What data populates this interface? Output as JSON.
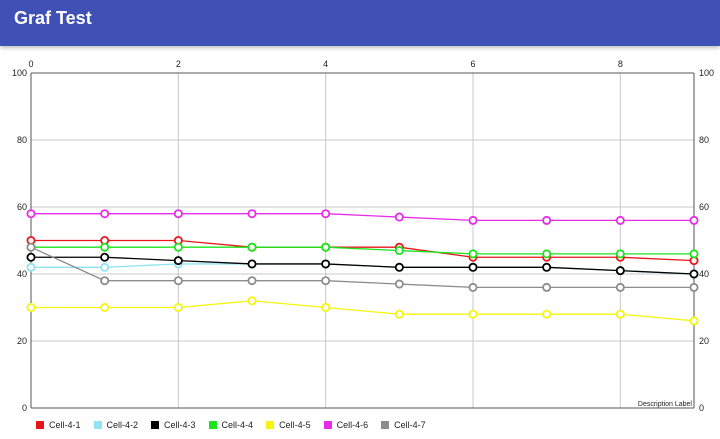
{
  "app": {
    "title": "Graf Test"
  },
  "chart_data": {
    "type": "line",
    "x": [
      0,
      1,
      2,
      3,
      4,
      5,
      6,
      7,
      8,
      9
    ],
    "xlim": [
      0,
      9
    ],
    "x_ticks": [
      0,
      2,
      4,
      6,
      8
    ],
    "ylim": [
      0,
      100
    ],
    "y_ticks": [
      0,
      20,
      40,
      60,
      80,
      100
    ],
    "grid": true,
    "description": "Description Label",
    "legend_position": "bottom-left",
    "series": [
      {
        "name": "Cell-4-1",
        "color": "#e8161b",
        "values": [
          50,
          50,
          50,
          48,
          48,
          48,
          45,
          45,
          45,
          44
        ]
      },
      {
        "name": "Cell-4-2",
        "color": "#8fe3f5",
        "values": [
          42,
          42,
          43,
          43,
          43,
          42,
          42,
          42,
          41,
          40
        ]
      },
      {
        "name": "Cell-4-3",
        "color": "#000000",
        "values": [
          45,
          45,
          44,
          43,
          43,
          42,
          42,
          42,
          41,
          40
        ]
      },
      {
        "name": "Cell-4-4",
        "color": "#19e619",
        "values": [
          48,
          48,
          48,
          48,
          48,
          47,
          46,
          46,
          46,
          46
        ]
      },
      {
        "name": "Cell-4-5",
        "color": "#f5f50f",
        "values": [
          30,
          30,
          30,
          32,
          30,
          28,
          28,
          28,
          28,
          26
        ]
      },
      {
        "name": "Cell-4-6",
        "color": "#e82be8",
        "values": [
          58,
          58,
          58,
          58,
          58,
          57,
          56,
          56,
          56,
          56
        ]
      },
      {
        "name": "Cell-4-7",
        "color": "#8c8c8c",
        "values": [
          48,
          38,
          38,
          38,
          38,
          37,
          36,
          36,
          36,
          36
        ]
      }
    ]
  }
}
